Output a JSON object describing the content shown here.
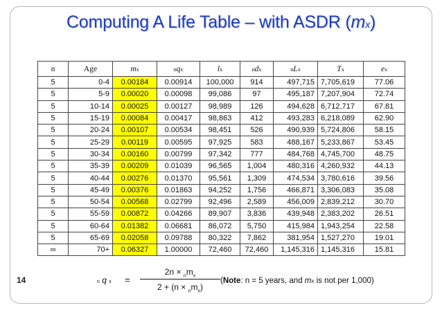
{
  "slide": {
    "title_main": "Computing A Life Table – with ASDR (",
    "title_var": "m",
    "title_sub": "x",
    "title_close": ")",
    "page_number": "14"
  },
  "table": {
    "headers": [
      {
        "main": "n",
        "sub": "",
        "pre": ""
      },
      {
        "main": "Age",
        "sub": "",
        "pre": ""
      },
      {
        "main": "m",
        "sub": "x",
        "pre": ""
      },
      {
        "main": "q",
        "sub": "x",
        "pre": "n"
      },
      {
        "main": "l",
        "sub": "x",
        "pre": ""
      },
      {
        "main": "d",
        "sub": "x",
        "pre": "n"
      },
      {
        "main": "L",
        "sub": "x",
        "pre": "n"
      },
      {
        "main": "T",
        "sub": "x",
        "pre": ""
      },
      {
        "main": "e",
        "sub": "x",
        "pre": ""
      }
    ],
    "rows": [
      [
        "5",
        "0-4",
        "0.00184",
        "0.00914",
        "100,000",
        "914",
        "497,715",
        "7,705,619",
        "77.06"
      ],
      [
        "5",
        "5-9",
        "0.00020",
        "0.00098",
        "99,086",
        "97",
        "495,187",
        "7,207,904",
        "72.74"
      ],
      [
        "5",
        "10-14",
        "0.00025",
        "0.00127",
        "98,989",
        "126",
        "494,628",
        "6,712,717",
        "67.81"
      ],
      [
        "5",
        "15-19",
        "0.00084",
        "0.00417",
        "98,863",
        "412",
        "493,283",
        "6,218,089",
        "62.90"
      ],
      [
        "5",
        "20-24",
        "0.00107",
        "0.00534",
        "98,451",
        "526",
        "490,939",
        "5,724,806",
        "58.15"
      ],
      [
        "5",
        "25-29",
        "0.00119",
        "0.00595",
        "97,925",
        "583",
        "488,167",
        "5,233,867",
        "53.45"
      ],
      [
        "5",
        "30-34",
        "0.00160",
        "0.00799",
        "97,342",
        "777",
        "484,768",
        "4,745,700",
        "48.75"
      ],
      [
        "5",
        "35-39",
        "0.00209",
        "0.01039",
        "96,565",
        "1,004",
        "480,316",
        "4,260,932",
        "44.13"
      ],
      [
        "5",
        "40-44",
        "0.00276",
        "0.01370",
        "95,561",
        "1,309",
        "474,534",
        "3,780,616",
        "39.56"
      ],
      [
        "5",
        "45-49",
        "0.00376",
        "0.01863",
        "94,252",
        "1,756",
        "466,871",
        "3,306,083",
        "35.08"
      ],
      [
        "5",
        "50-54",
        "0.00568",
        "0.02799",
        "92,496",
        "2,589",
        "456,009",
        "2,839,212",
        "30.70"
      ],
      [
        "5",
        "55-59",
        "0.00872",
        "0.04266",
        "89,907",
        "3,836",
        "439,948",
        "2,383,202",
        "26.51"
      ],
      [
        "5",
        "60-64",
        "0.01382",
        "0.06681",
        "86,072",
        "5,750",
        "415,984",
        "1,943,254",
        "22.58"
      ],
      [
        "5",
        "65-69",
        "0.02058",
        "0.09788",
        "80,322",
        "7,862",
        "381,954",
        "1,527,270",
        "19.01"
      ],
      [
        "∞",
        "70+",
        "0.06327",
        "1.00000",
        "72,460",
        "72,460",
        "1,145,316",
        "1,145,316",
        "15.81"
      ]
    ],
    "highlight_color": "#ffff00"
  },
  "formula": {
    "lhs_pre": "n",
    "lhs_var": "q",
    "lhs_sub": "x",
    "equals": "=",
    "numerator": "2n × ",
    "numerator_pre": "n",
    "numerator_var": "m",
    "numerator_sub": "x",
    "denominator": "2 + (n × ",
    "denominator_pre": "n",
    "denominator_var": "m",
    "denominator_sub": "x",
    "denominator_close": ")"
  },
  "note": {
    "open": "(",
    "label": "Note",
    "text_1": ": n = 5 years, and ",
    "var": "m",
    "sub": "x",
    "text_2": " is not per 1,000)"
  },
  "colors": {
    "title": "#1f3fbf",
    "highlight": "#ffff00"
  }
}
